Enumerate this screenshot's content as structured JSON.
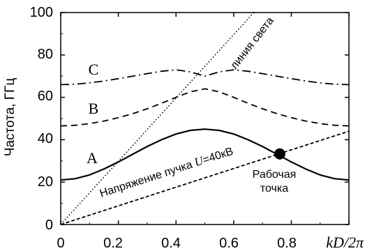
{
  "chart_data": {
    "type": "line",
    "title": "",
    "xlabel": "kD/2π",
    "ylabel": "Частота, ГГц",
    "xlim": [
      0,
      1
    ],
    "ylim": [
      0,
      100
    ],
    "x_ticks": [
      "0",
      "0.2",
      "0.4",
      "0.6",
      "0.8"
    ],
    "y_ticks": [
      "0",
      "20",
      "40",
      "60",
      "80",
      "100"
    ],
    "grid": false,
    "series": [
      {
        "name": "A",
        "style": "solid",
        "x": [
          0,
          0.05,
          0.1,
          0.15,
          0.2,
          0.25,
          0.3,
          0.35,
          0.4,
          0.45,
          0.5,
          0.55,
          0.6,
          0.65,
          0.7,
          0.75,
          0.8,
          0.85,
          0.9,
          0.95,
          1.0
        ],
        "values": [
          21.0,
          21.6,
          23.4,
          26.2,
          29.5,
          33.2,
          36.8,
          40.0,
          42.7,
          44.4,
          45.0,
          44.4,
          42.7,
          40.0,
          36.8,
          33.2,
          29.5,
          26.2,
          23.4,
          21.6,
          21.0
        ]
      },
      {
        "name": "B",
        "style": "dashed",
        "x": [
          0,
          0.05,
          0.1,
          0.15,
          0.2,
          0.25,
          0.3,
          0.35,
          0.4,
          0.45,
          0.5,
          0.55,
          0.6,
          0.65,
          0.7,
          0.75,
          0.8,
          0.85,
          0.9,
          0.95,
          1.0
        ],
        "values": [
          46.5,
          46.8,
          47.6,
          48.8,
          50.4,
          52.3,
          54.6,
          57.2,
          60.0,
          62.6,
          64.0,
          62.6,
          60.0,
          57.2,
          54.6,
          52.3,
          50.4,
          48.8,
          47.6,
          46.8,
          46.5
        ]
      },
      {
        "name": "C",
        "style": "dash-dot",
        "x": [
          0,
          0.05,
          0.1,
          0.15,
          0.2,
          0.25,
          0.3,
          0.35,
          0.4,
          0.45,
          0.5,
          0.55,
          0.6,
          0.65,
          0.7,
          0.75,
          0.8,
          0.85,
          0.9,
          0.95,
          1.0
        ],
        "values": [
          66.0,
          66.2,
          66.8,
          67.7,
          68.8,
          70.0,
          71.2,
          72.3,
          73.0,
          72.0,
          70.0,
          72.0,
          73.0,
          72.3,
          71.2,
          70.0,
          68.8,
          67.7,
          66.8,
          66.2,
          66.0
        ]
      },
      {
        "name": "линия света",
        "style": "dotted",
        "x": [
          0,
          0.67
        ],
        "values": [
          0,
          100
        ]
      },
      {
        "name": "Напряжение пучка U=40кВ",
        "style": "short-dashed",
        "x": [
          0,
          1.0
        ],
        "values": [
          0,
          44
        ]
      }
    ],
    "annotations": {
      "curve_labels": {
        "A": "A",
        "B": "B",
        "C": "C"
      },
      "light_line_label": "линия света",
      "beam_label_prefix": "Напряжение пучка ",
      "beam_label_var": "U",
      "beam_label_suffix": "=40кВ",
      "operating_point_label_line1": "Рабочая",
      "operating_point_label_line2": "точка",
      "operating_point": {
        "x": 0.76,
        "y": 33.3
      }
    }
  }
}
